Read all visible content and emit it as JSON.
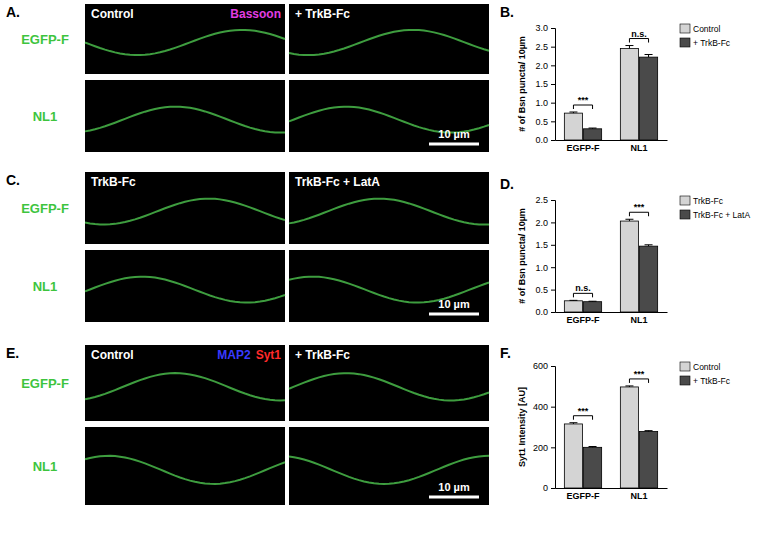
{
  "chart_data": [
    {
      "type": "bar",
      "title": "B.",
      "y_label": "# of Bsn puncta/ 10µm",
      "categories": [
        "EGFP-F",
        "NL1"
      ],
      "series": [
        {
          "name": "Control",
          "color": "#d4d4d4",
          "values": [
            0.72,
            2.45
          ],
          "errors": [
            0.03,
            0.08
          ]
        },
        {
          "name": "+ TrkB-Fc",
          "color": "#4a4a4a",
          "values": [
            0.3,
            2.22
          ],
          "errors": [
            0.02,
            0.07
          ]
        }
      ],
      "annotations": [
        "***",
        "n.s."
      ],
      "ylim": [
        0,
        3
      ],
      "yticks": [
        {
          "value": 0,
          "label": "0.0"
        },
        {
          "value": 0.5,
          "label": "0.5"
        },
        {
          "value": 1,
          "label": "1.0"
        },
        {
          "value": 1.5,
          "label": "1.5"
        },
        {
          "value": 2,
          "label": "2.0"
        },
        {
          "value": 2.5,
          "label": "2.5"
        },
        {
          "value": 3,
          "label": "3.0"
        }
      ],
      "legend": "right"
    },
    {
      "type": "bar",
      "title": "D.",
      "y_label": "# of Bsn puncta/ 10µm",
      "categories": [
        "EGFP-F",
        "NL1"
      ],
      "series": [
        {
          "name": "TrkB-Fc",
          "color": "#d4d4d4",
          "values": [
            0.25,
            2.03
          ],
          "errors": [
            0.01,
            0.04
          ]
        },
        {
          "name": "TrkB-Fc + LatA",
          "color": "#4a4a4a",
          "values": [
            0.23,
            1.47
          ],
          "errors": [
            0.01,
            0.03
          ]
        }
      ],
      "annotations": [
        "n.s.",
        "***"
      ],
      "ylim": [
        0,
        2.5
      ],
      "yticks": [
        {
          "value": 0,
          "label": "0.0"
        },
        {
          "value": 0.5,
          "label": "0.5"
        },
        {
          "value": 1,
          "label": "1.0"
        },
        {
          "value": 1.5,
          "label": "1.5"
        },
        {
          "value": 2,
          "label": "2.0"
        },
        {
          "value": 2.5,
          "label": "2.5"
        }
      ],
      "legend": "right"
    },
    {
      "type": "bar",
      "title": "F.",
      "y_label": "Syt1 Intensity [AU]",
      "categories": [
        "EGFP-F",
        "NL1"
      ],
      "series": [
        {
          "name": "Control",
          "color": "#d4d4d4",
          "values": [
            315,
            497
          ],
          "errors": [
            6,
            5
          ]
        },
        {
          "name": "+ TtkB-Fc",
          "color": "#4a4a4a",
          "values": [
            200,
            278
          ],
          "errors": [
            4,
            4
          ]
        }
      ],
      "annotations": [
        "***",
        "***"
      ],
      "ylim": [
        0,
        600
      ],
      "yticks": [
        0,
        200,
        400,
        600
      ],
      "legend": "right"
    }
  ],
  "image_panels": [
    {
      "label": "A.",
      "columns": [
        "Control",
        "+ TrkB-Fc"
      ],
      "stain_labels": [
        {
          "text": "Bassoon",
          "color": "#e23de2"
        }
      ],
      "rows": [
        "EGFP-F",
        "NL1"
      ],
      "scale_bar": "10 µm"
    },
    {
      "label": "C.",
      "columns": [
        "TrkB-Fc",
        "TrkB-Fc + LatA"
      ],
      "rows": [
        "EGFP-F",
        "NL1"
      ],
      "scale_bar": "10 µm"
    },
    {
      "label": "E.",
      "columns": [
        "Control",
        "+ TrkB-Fc"
      ],
      "stain_labels": [
        {
          "text": "MAP2",
          "color": "#3a3aff"
        },
        {
          "text": "Syt1",
          "color": "#ff2a2a"
        }
      ],
      "rows": [
        "EGFP-F",
        "NL1"
      ],
      "scale_bar": "10 µm"
    }
  ]
}
